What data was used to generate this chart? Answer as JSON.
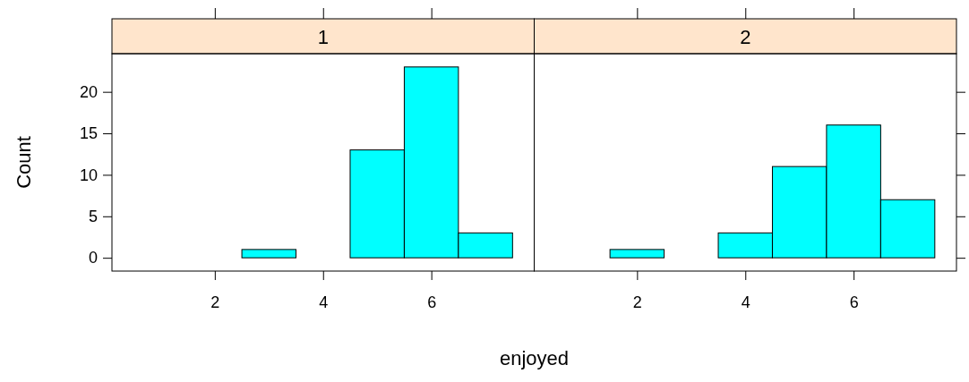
{
  "chart_data": [
    {
      "type": "histogram",
      "title": "1",
      "xlabel": "enjoyed",
      "ylabel": "Count",
      "bins": [
        0.5,
        1.5,
        2.5,
        3.5,
        4.5,
        5.5,
        6.5,
        7.5
      ],
      "values": [
        0,
        0,
        1,
        0,
        13,
        23,
        3
      ],
      "color": "#00ffff",
      "xlim": [
        0.1,
        7.9
      ],
      "ylim": [
        -1.6,
        24.6
      ],
      "xticks": [
        2,
        4,
        6
      ],
      "yticks": [
        0,
        5,
        10,
        15,
        20
      ]
    },
    {
      "type": "histogram",
      "title": "2",
      "bins": [
        0.5,
        1.5,
        2.5,
        3.5,
        4.5,
        5.5,
        6.5,
        7.5
      ],
      "values": [
        0,
        1,
        0,
        3,
        11,
        16,
        7
      ],
      "color": "#00ffff",
      "xlim": [
        0.1,
        7.9
      ],
      "ylim": [
        -1.6,
        24.6
      ],
      "xticks": [
        2,
        4,
        6
      ],
      "yticks": [
        0,
        5,
        10,
        15,
        20
      ],
      "tick_labels": "x"
    }
  ]
}
